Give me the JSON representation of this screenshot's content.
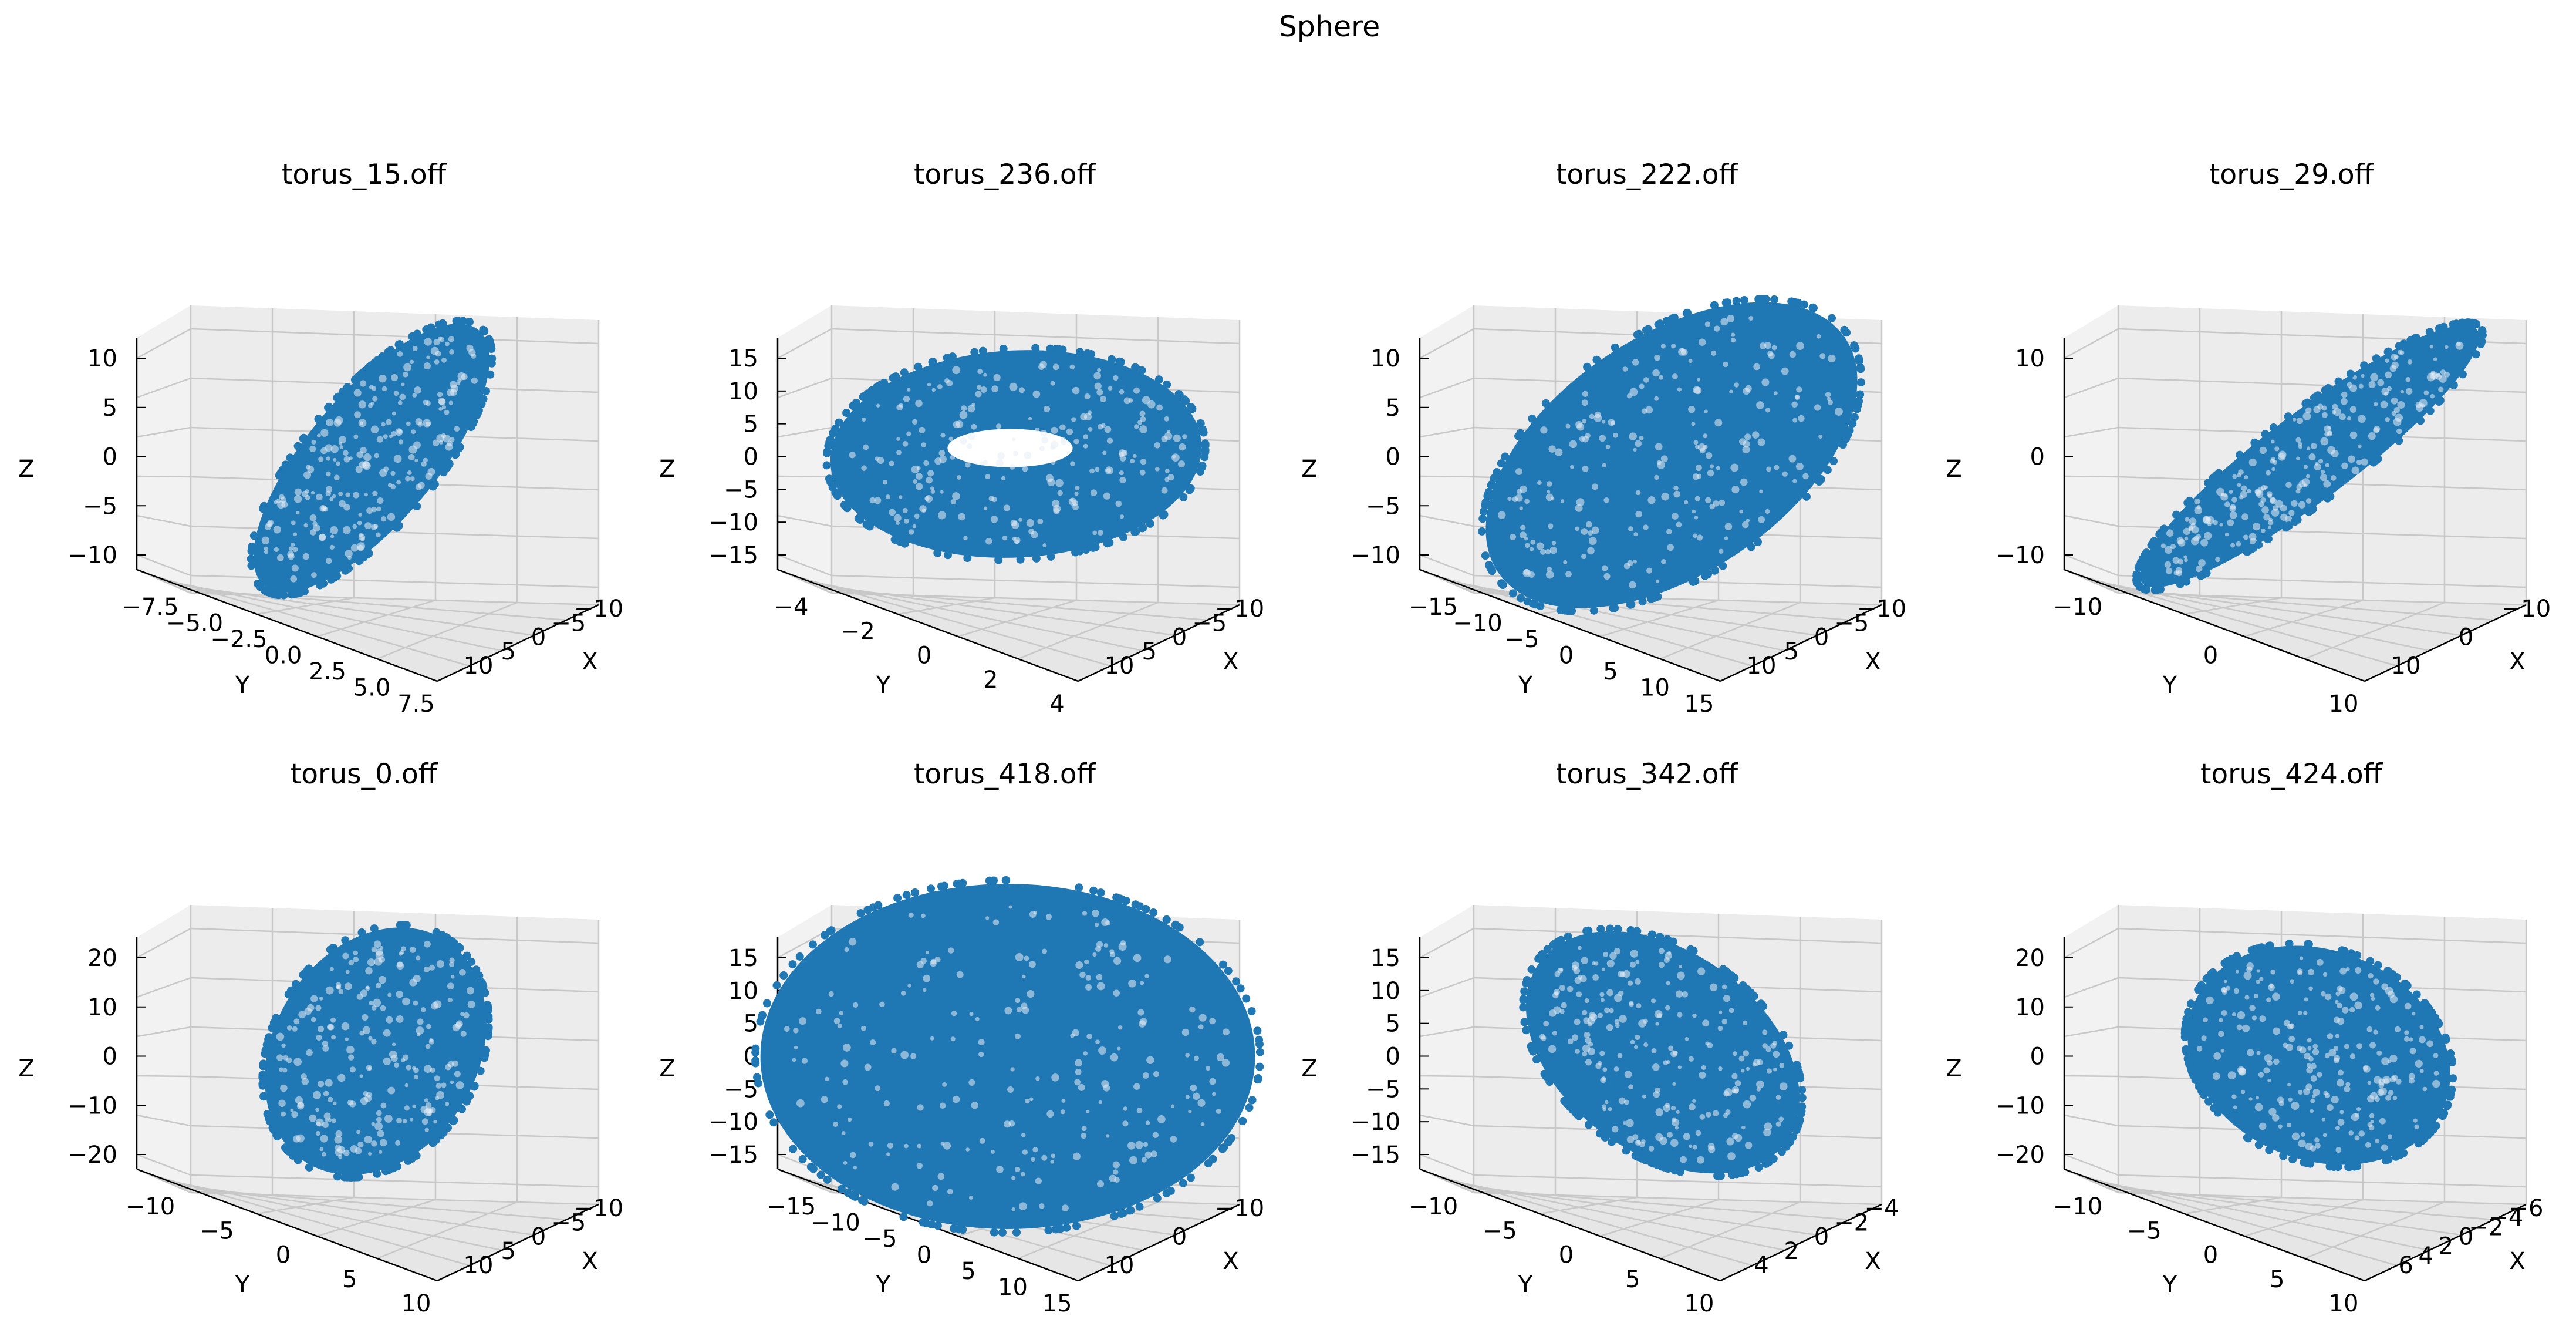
{
  "figure": {
    "suptitle": "Sphere"
  },
  "chart_data": [
    {
      "type": "scatter3d",
      "title": "torus_15.off",
      "xlabel": "X",
      "ylabel": "Y",
      "zlabel": "Z",
      "xticks": [
        "−10",
        "−5",
        "0",
        "5",
        "10"
      ],
      "yticks": [
        "−7.5",
        "−5.0",
        "−2.5",
        "0.0",
        "2.5",
        "5.0",
        "7.5"
      ],
      "zticks": [
        "10",
        "5",
        "0",
        "−5",
        "−10"
      ],
      "shape": "tilted ellipse",
      "color": "#1f77b4"
    },
    {
      "type": "scatter3d",
      "title": "torus_236.off",
      "xlabel": "X",
      "ylabel": "Y",
      "zlabel": "Z",
      "xticks": [
        "−10",
        "−5",
        "0",
        "5",
        "10"
      ],
      "yticks": [
        "−4",
        "−2",
        "0",
        "2",
        "4"
      ],
      "zticks": [
        "15",
        "10",
        "5",
        "0",
        "−5",
        "−10",
        "−15"
      ],
      "shape": "ring with hole",
      "color": "#1f77b4"
    },
    {
      "type": "scatter3d",
      "title": "torus_222.off",
      "xlabel": "X",
      "ylabel": "Y",
      "zlabel": "Z",
      "xticks": [
        "−10",
        "−5",
        "0",
        "5",
        "10"
      ],
      "yticks": [
        "−15",
        "−10",
        "−5",
        "0",
        "5",
        "10",
        "15"
      ],
      "zticks": [
        "10",
        "5",
        "0",
        "−5",
        "−10"
      ],
      "shape": "tilted ellipse",
      "color": "#1f77b4"
    },
    {
      "type": "scatter3d",
      "title": "torus_29.off",
      "xlabel": "X",
      "ylabel": "Y",
      "zlabel": "Z",
      "xticks": [
        "−10",
        "0",
        "10"
      ],
      "yticks": [
        "−10",
        "0",
        "10"
      ],
      "zticks": [
        "10",
        "0",
        "−10"
      ],
      "shape": "thin tilted ellipse",
      "color": "#1f77b4"
    },
    {
      "type": "scatter3d",
      "title": "torus_0.off",
      "xlabel": "X",
      "ylabel": "Y",
      "zlabel": "Z",
      "xticks": [
        "−10",
        "−5",
        "0",
        "5",
        "10"
      ],
      "yticks": [
        "−10",
        "−5",
        "0",
        "5",
        "10"
      ],
      "zticks": [
        "20",
        "10",
        "0",
        "−10",
        "−20"
      ],
      "shape": "tilted ellipse",
      "color": "#1f77b4"
    },
    {
      "type": "scatter3d",
      "title": "torus_418.off",
      "xlabel": "X",
      "ylabel": "Y",
      "zlabel": "Z",
      "xticks": [
        "−10",
        "0",
        "10"
      ],
      "yticks": [
        "−15",
        "−10",
        "−5",
        "0",
        "5",
        "10",
        "15"
      ],
      "zticks": [
        "15",
        "10",
        "5",
        "0",
        "−5",
        "−10",
        "−15"
      ],
      "shape": "wide ellipse",
      "color": "#1f77b4"
    },
    {
      "type": "scatter3d",
      "title": "torus_342.off",
      "xlabel": "X",
      "ylabel": "Y",
      "zlabel": "Z",
      "xticks": [
        "−4",
        "−2",
        "0",
        "2",
        "4"
      ],
      "yticks": [
        "−10",
        "−5",
        "0",
        "5",
        "10"
      ],
      "zticks": [
        "15",
        "10",
        "5",
        "0",
        "−5",
        "−10",
        "−15"
      ],
      "shape": "tilted ellipse",
      "color": "#1f77b4"
    },
    {
      "type": "scatter3d",
      "title": "torus_424.off",
      "xlabel": "X",
      "ylabel": "Y",
      "zlabel": "Z",
      "xticks": [
        "−6",
        "−4",
        "−2",
        "0",
        "2",
        "4",
        "6"
      ],
      "yticks": [
        "−10",
        "−5",
        "0",
        "5",
        "10"
      ],
      "zticks": [
        "20",
        "10",
        "0",
        "−10",
        "−20"
      ],
      "shape": "tilted ellipse",
      "color": "#1f77b4"
    }
  ]
}
